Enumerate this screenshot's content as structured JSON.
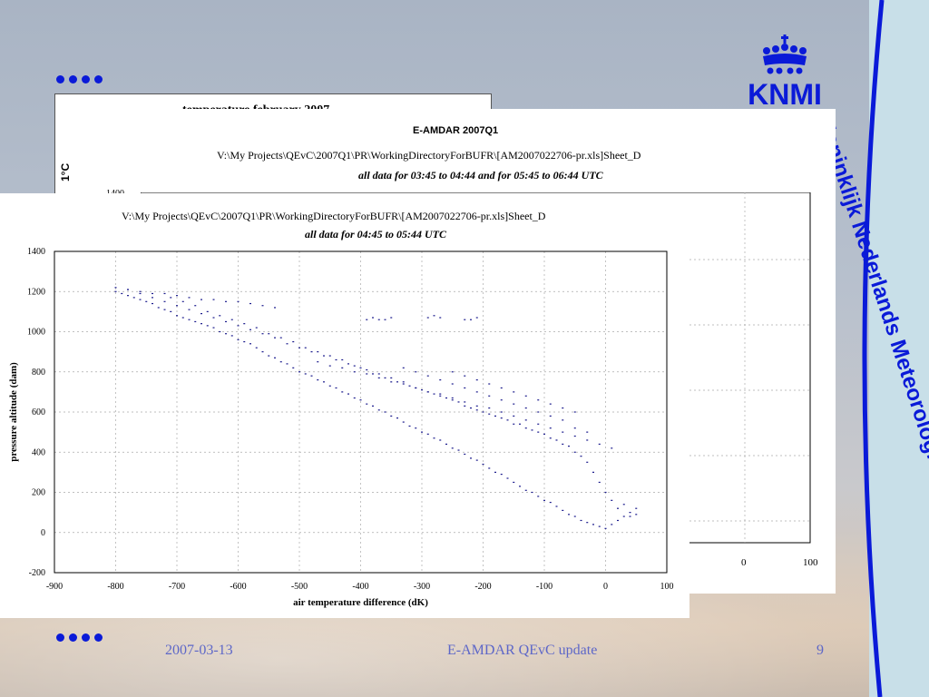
{
  "slide": {
    "vertical_title": "Koninklijk Nederlands Meteorologisch Instituut",
    "logo_text": "KNMI",
    "footer_date": "2007-03-13",
    "footer_title": "E-AMDAR QEvC update",
    "page_number": "9",
    "accent_color": "#0a1ad8"
  },
  "back_panel": {
    "title": "temperature february 2007",
    "unit_label": "1°C"
  },
  "middle_panel": {
    "title": "E-AMDAR 2007Q1",
    "path": "V:\\My Projects\\QEvC\\2007Q1\\PR\\WorkingDirectoryForBUFR\\[AM2007022706-pr.xls]Sheet_D",
    "subtitle": "all data for 03:45 to 04:44 and for 05:45 to 06:44 UTC",
    "visible_tick_top": "1400",
    "x_ticks_visible": [
      "0",
      "100"
    ]
  },
  "chart_data": {
    "type": "scatter",
    "path": "V:\\My Projects\\QEvC\\2007Q1\\PR\\WorkingDirectoryForBUFR\\[AM2007022706-pr.xls]Sheet_D",
    "title": "all data for 04:45 to 05:44 UTC",
    "xlabel": "air temperature difference (dK)",
    "ylabel": "pressure altitude (dam)",
    "xlim": [
      -900,
      100
    ],
    "ylim": [
      -200,
      1400
    ],
    "x_ticks": [
      "-900",
      "-800",
      "-700",
      "-600",
      "-500",
      "-400",
      "-300",
      "-200",
      "-100",
      "0",
      "100"
    ],
    "y_ticks": [
      "1400",
      "1200",
      "1000",
      "800",
      "600",
      "400",
      "200",
      "0",
      "-200"
    ],
    "grid": true,
    "marker_color": "#1a1a8c",
    "series": [
      {
        "x": [
          -800,
          -790,
          -780,
          -770,
          -760,
          -750,
          -740,
          -730,
          -720,
          -710,
          -700,
          -690,
          -680,
          -670,
          -660,
          -650,
          -640,
          -630,
          -620,
          -610,
          -600,
          -590,
          -580,
          -570,
          -560,
          -550,
          -540,
          -530,
          -520,
          -510,
          -500,
          -490,
          -480,
          -470,
          -460,
          -450,
          -440,
          -430,
          -420,
          -410,
          -400,
          -390,
          -380,
          -370,
          -360,
          -350,
          -340,
          -330,
          -320,
          -310,
          -300,
          -290,
          -280,
          -270,
          -260,
          -250,
          -240,
          -230,
          -220,
          -210,
          -200,
          -190,
          -180,
          -170,
          -160,
          -150,
          -140,
          -130,
          -120,
          -110,
          -100,
          -90,
          -80,
          -70,
          -60,
          -50,
          -40,
          -30,
          -20,
          -10,
          0,
          10,
          20,
          30,
          40,
          50,
          -710,
          -690,
          -670,
          -650,
          -630,
          -610,
          -590,
          -570,
          -550,
          -530,
          -510,
          -490,
          -470,
          -450,
          -430,
          -410,
          -390,
          -370,
          -350,
          -330,
          -310,
          -290,
          -270,
          -250,
          -230,
          -210,
          -190,
          -170,
          -150,
          -130,
          -110,
          -90,
          -70,
          -50,
          -30,
          -10,
          10,
          30,
          50,
          -780,
          -760,
          -740,
          -720,
          -700,
          -680,
          -660,
          -640,
          -620,
          -600,
          -580,
          -560,
          -540,
          -520,
          -500,
          -480,
          -460,
          -440,
          -420,
          -400,
          -380,
          -360,
          -340,
          -320,
          -300,
          -280,
          -260,
          -240,
          -220,
          -200,
          -180,
          -160,
          -140,
          -120,
          -100,
          -80,
          -60,
          -40,
          -20,
          0,
          20,
          40,
          -330,
          -310,
          -290,
          -270,
          -250,
          -230,
          -210,
          -190,
          -170,
          -150,
          -130,
          -110,
          -90,
          -70,
          -50,
          -30,
          -250,
          -230,
          -210,
          -190,
          -170,
          -150,
          -130,
          -110,
          -90,
          -70,
          -50,
          -470,
          -450,
          -430,
          -410,
          -390,
          -370,
          -350,
          -330,
          -310,
          -290,
          -270,
          -250,
          -230,
          -210,
          -190,
          -170,
          -150,
          -130,
          -110,
          -90,
          -70,
          -50,
          -30,
          -10,
          10,
          -390,
          -380,
          -370,
          -360,
          -350,
          -290,
          -280,
          -270,
          -230,
          -220,
          -210,
          -800,
          -780,
          -760,
          -740,
          -720,
          -700,
          -680,
          -660,
          -640,
          -620,
          -600,
          -580,
          -560,
          -540
        ],
        "y": [
          1200,
          1190,
          1180,
          1170,
          1160,
          1150,
          1140,
          1120,
          1110,
          1100,
          1080,
          1070,
          1060,
          1050,
          1040,
          1030,
          1020,
          1000,
          990,
          980,
          960,
          950,
          940,
          920,
          900,
          880,
          870,
          850,
          840,
          820,
          800,
          790,
          780,
          760,
          750,
          730,
          720,
          700,
          690,
          670,
          660,
          640,
          630,
          610,
          600,
          580,
          570,
          550,
          530,
          520,
          500,
          490,
          470,
          460,
          440,
          420,
          410,
          390,
          370,
          360,
          340,
          320,
          300,
          290,
          270,
          250,
          230,
          210,
          200,
          180,
          160,
          150,
          130,
          110,
          90,
          80,
          60,
          50,
          40,
          30,
          20,
          40,
          60,
          80,
          100,
          90,
          1170,
          1150,
          1130,
          1100,
          1080,
          1060,
          1040,
          1020,
          990,
          970,
          950,
          920,
          900,
          880,
          860,
          830,
          810,
          790,
          770,
          750,
          720,
          700,
          680,
          660,
          630,
          610,
          590,
          570,
          540,
          520,
          500,
          470,
          440,
          400,
          350,
          250,
          160,
          140,
          120,
          1210,
          1190,
          1170,
          1150,
          1130,
          1110,
          1090,
          1070,
          1050,
          1030,
          1010,
          990,
          970,
          940,
          920,
          900,
          880,
          860,
          840,
          820,
          790,
          770,
          750,
          730,
          710,
          690,
          670,
          650,
          620,
          600,
          580,
          560,
          540,
          510,
          490,
          460,
          430,
          380,
          300,
          200,
          120,
          80,
          820,
          800,
          780,
          760,
          740,
          720,
          700,
          680,
          660,
          640,
          620,
          600,
          580,
          560,
          520,
          500,
          800,
          780,
          760,
          740,
          720,
          700,
          680,
          660,
          640,
          620,
          600,
          850,
          830,
          820,
          800,
          790,
          770,
          750,
          740,
          720,
          700,
          690,
          670,
          650,
          630,
          620,
          600,
          580,
          560,
          540,
          520,
          500,
          480,
          460,
          440,
          420,
          1060,
          1070,
          1060,
          1060,
          1070,
          1070,
          1080,
          1070,
          1060,
          1060,
          1070,
          1220,
          1210,
          1200,
          1190,
          1190,
          1180,
          1170,
          1160,
          1160,
          1150,
          1150,
          1140,
          1130,
          1120
        ]
      }
    ]
  }
}
